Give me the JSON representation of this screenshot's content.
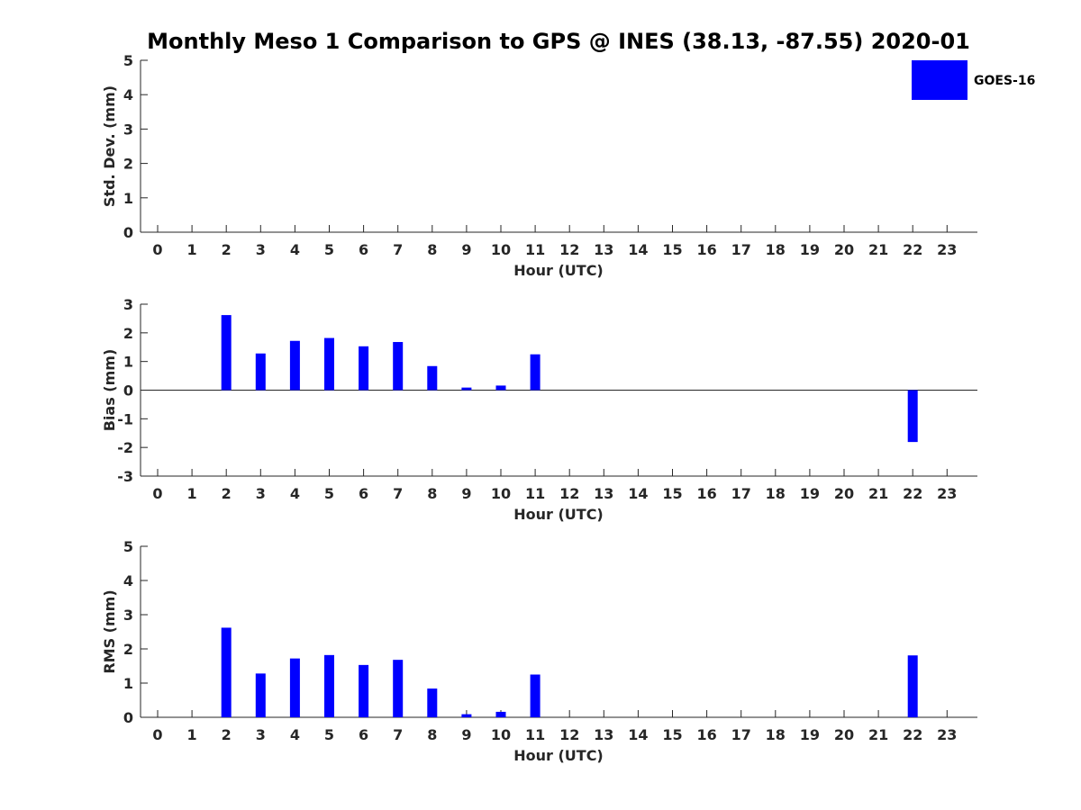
{
  "title": "Monthly Meso 1 Comparison to GPS @ INES (38.13, -87.55) 2020-01",
  "legend": {
    "label": "GOES-16",
    "color": "#0000ff",
    "placement": "top-right"
  },
  "chart_data": [
    {
      "type": "bar",
      "name": "std-dev",
      "xlabel": "Hour (UTC)",
      "ylabel": "Std. Dev. (mm)",
      "categories": [
        "0",
        "1",
        "2",
        "3",
        "4",
        "5",
        "6",
        "7",
        "8",
        "9",
        "10",
        "11",
        "12",
        "13",
        "14",
        "15",
        "16",
        "17",
        "18",
        "19",
        "20",
        "21",
        "22",
        "23"
      ],
      "values": [
        0,
        0,
        0,
        0,
        0,
        0,
        0,
        0,
        0,
        0,
        0,
        0,
        0,
        0,
        0,
        0,
        0,
        0,
        0,
        0,
        0,
        0,
        0,
        0
      ],
      "ylim": [
        0,
        5
      ],
      "yticks": [
        "0",
        "1",
        "2",
        "3",
        "4",
        "5"
      ],
      "grid": false
    },
    {
      "type": "bar",
      "name": "bias",
      "xlabel": "Hour (UTC)",
      "ylabel": "Bias (mm)",
      "categories": [
        "0",
        "1",
        "2",
        "3",
        "4",
        "5",
        "6",
        "7",
        "8",
        "9",
        "10",
        "11",
        "12",
        "13",
        "14",
        "15",
        "16",
        "17",
        "18",
        "19",
        "20",
        "21",
        "22",
        "23"
      ],
      "values": [
        0,
        0,
        2.62,
        1.28,
        1.72,
        1.82,
        1.53,
        1.68,
        0.84,
        0.09,
        0.16,
        1.25,
        0,
        0,
        0,
        0,
        0,
        0,
        0,
        0,
        0,
        0,
        -1.81,
        0
      ],
      "ylim": [
        -3,
        3
      ],
      "yticks": [
        "-3",
        "-2",
        "-1",
        "0",
        "1",
        "2",
        "3"
      ],
      "zero_line": true,
      "grid": false
    },
    {
      "type": "bar",
      "name": "rms",
      "xlabel": "Hour (UTC)",
      "ylabel": "RMS (mm)",
      "categories": [
        "0",
        "1",
        "2",
        "3",
        "4",
        "5",
        "6",
        "7",
        "8",
        "9",
        "10",
        "11",
        "12",
        "13",
        "14",
        "15",
        "16",
        "17",
        "18",
        "19",
        "20",
        "21",
        "22",
        "23"
      ],
      "values": [
        0,
        0,
        2.62,
        1.28,
        1.72,
        1.82,
        1.53,
        1.68,
        0.84,
        0.09,
        0.16,
        1.25,
        0,
        0,
        0,
        0,
        0,
        0,
        0,
        0,
        0,
        0,
        1.81,
        0
      ],
      "ylim": [
        0,
        5
      ],
      "yticks": [
        "0",
        "1",
        "2",
        "3",
        "4",
        "5"
      ],
      "grid": false
    }
  ]
}
